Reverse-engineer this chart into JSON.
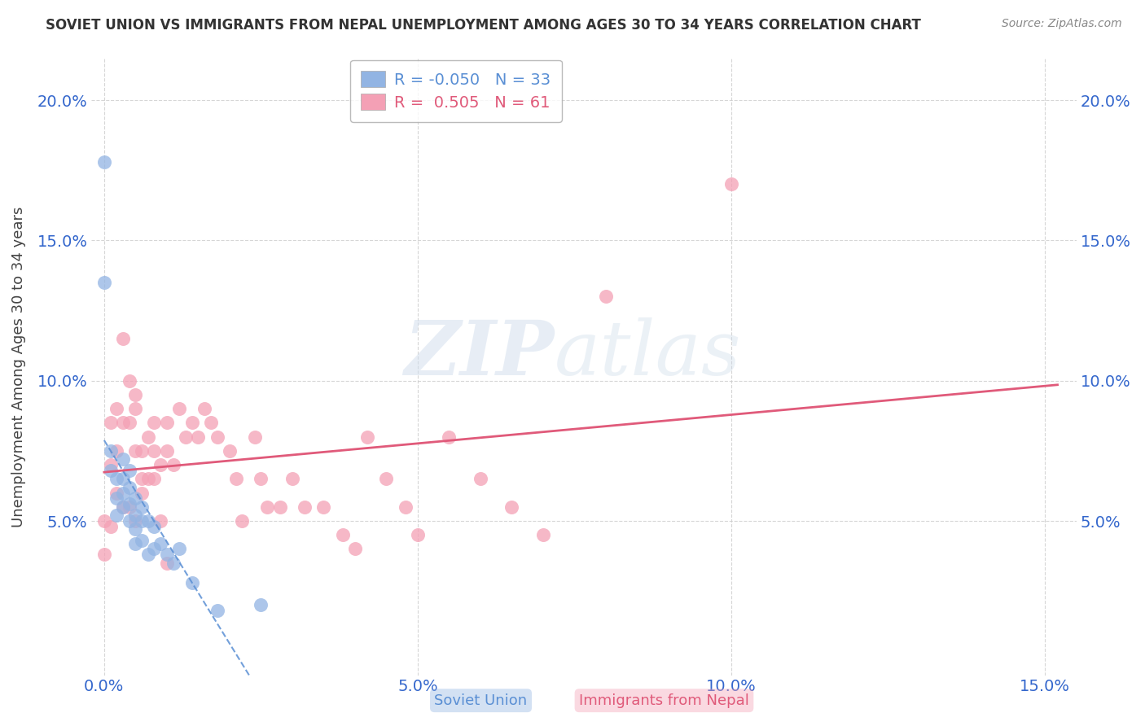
{
  "title": "SOVIET UNION VS IMMIGRANTS FROM NEPAL UNEMPLOYMENT AMONG AGES 30 TO 34 YEARS CORRELATION CHART",
  "source": "Source: ZipAtlas.com",
  "ylabel": "Unemployment Among Ages 30 to 34 years",
  "xlim": [
    -0.002,
    0.155
  ],
  "ylim": [
    -0.005,
    0.215
  ],
  "x_tick_vals": [
    0.0,
    0.05,
    0.1,
    0.15
  ],
  "x_tick_labels": [
    "0.0%",
    "5.0%",
    "10.0%",
    "15.0%"
  ],
  "y_tick_vals": [
    0.05,
    0.1,
    0.15,
    0.2
  ],
  "y_tick_labels": [
    "5.0%",
    "10.0%",
    "15.0%",
    "20.0%"
  ],
  "soviet_color": "#92B4E3",
  "nepal_color": "#F4A0B5",
  "soviet_line_color": "#5A8FD4",
  "nepal_line_color": "#E05A7A",
  "soviet_R": -0.05,
  "soviet_N": 33,
  "nepal_R": 0.505,
  "nepal_N": 61,
  "soviet_x": [
    0.0,
    0.0,
    0.001,
    0.001,
    0.002,
    0.002,
    0.002,
    0.003,
    0.003,
    0.003,
    0.003,
    0.004,
    0.004,
    0.004,
    0.004,
    0.005,
    0.005,
    0.005,
    0.005,
    0.006,
    0.006,
    0.006,
    0.007,
    0.007,
    0.008,
    0.008,
    0.009,
    0.01,
    0.011,
    0.012,
    0.014,
    0.018,
    0.025
  ],
  "soviet_y": [
    0.178,
    0.135,
    0.075,
    0.068,
    0.065,
    0.058,
    0.052,
    0.072,
    0.065,
    0.06,
    0.055,
    0.068,
    0.062,
    0.056,
    0.05,
    0.058,
    0.052,
    0.047,
    0.042,
    0.055,
    0.05,
    0.043,
    0.05,
    0.038,
    0.048,
    0.04,
    0.042,
    0.038,
    0.035,
    0.04,
    0.028,
    0.018,
    0.02
  ],
  "nepal_x": [
    0.0,
    0.0,
    0.001,
    0.001,
    0.001,
    0.002,
    0.002,
    0.002,
    0.003,
    0.003,
    0.003,
    0.004,
    0.004,
    0.004,
    0.005,
    0.005,
    0.005,
    0.005,
    0.006,
    0.006,
    0.006,
    0.007,
    0.007,
    0.008,
    0.008,
    0.008,
    0.009,
    0.009,
    0.01,
    0.01,
    0.01,
    0.011,
    0.012,
    0.013,
    0.014,
    0.015,
    0.016,
    0.017,
    0.018,
    0.02,
    0.021,
    0.022,
    0.024,
    0.025,
    0.026,
    0.028,
    0.03,
    0.032,
    0.035,
    0.038,
    0.04,
    0.042,
    0.045,
    0.048,
    0.05,
    0.055,
    0.06,
    0.065,
    0.07,
    0.08,
    0.1
  ],
  "nepal_y": [
    0.05,
    0.038,
    0.085,
    0.07,
    0.048,
    0.09,
    0.075,
    0.06,
    0.115,
    0.085,
    0.055,
    0.1,
    0.085,
    0.055,
    0.095,
    0.09,
    0.075,
    0.05,
    0.075,
    0.065,
    0.06,
    0.08,
    0.065,
    0.085,
    0.075,
    0.065,
    0.07,
    0.05,
    0.085,
    0.075,
    0.035,
    0.07,
    0.09,
    0.08,
    0.085,
    0.08,
    0.09,
    0.085,
    0.08,
    0.075,
    0.065,
    0.05,
    0.08,
    0.065,
    0.055,
    0.055,
    0.065,
    0.055,
    0.055,
    0.045,
    0.04,
    0.08,
    0.065,
    0.055,
    0.045,
    0.08,
    0.065,
    0.055,
    0.045,
    0.13,
    0.17
  ],
  "watermark_zip": "ZIP",
  "watermark_atlas": "atlas",
  "background_color": "#FFFFFF",
  "grid_color": "#CCCCCC"
}
